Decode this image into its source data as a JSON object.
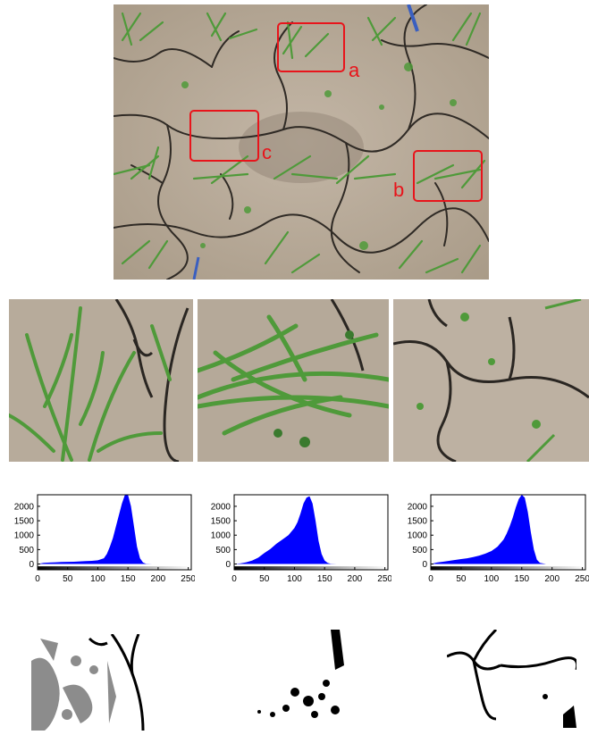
{
  "figure": {
    "regions": [
      {
        "label": "a"
      },
      {
        "label": "b"
      },
      {
        "label": "c"
      }
    ],
    "annotation_color": "#e8141b",
    "soil_color": "#b8aa99",
    "plant_color": "#4f9a3a",
    "crack_color": "#2a2622"
  },
  "chart_data": [
    {
      "type": "bar",
      "title": "",
      "xlabel": "",
      "ylabel": "",
      "xlim": [
        0,
        255
      ],
      "ylim": [
        -200,
        2400
      ],
      "xticks": [
        "0",
        "50",
        "100",
        "150",
        "200",
        "250"
      ],
      "yticks": [
        "0",
        "500",
        "1000",
        "1500",
        "2000"
      ],
      "bar_color": "#0000ff",
      "x": [
        0,
        10,
        20,
        30,
        40,
        50,
        60,
        70,
        80,
        90,
        100,
        110,
        115,
        120,
        125,
        130,
        135,
        140,
        145,
        150,
        155,
        160,
        165,
        170,
        175,
        180,
        190,
        200,
        255
      ],
      "values": [
        0,
        40,
        50,
        60,
        70,
        75,
        80,
        90,
        100,
        110,
        130,
        200,
        350,
        600,
        900,
        1300,
        1700,
        2100,
        2400,
        2400,
        2000,
        1300,
        600,
        200,
        50,
        10,
        0,
        0,
        0
      ]
    },
    {
      "type": "bar",
      "title": "",
      "xlabel": "",
      "ylabel": "",
      "xlim": [
        0,
        255
      ],
      "ylim": [
        -200,
        2400
      ],
      "xticks": [
        "0",
        "50",
        "100",
        "150",
        "200",
        "250"
      ],
      "yticks": [
        "0",
        "500",
        "1000",
        "1500",
        "2000"
      ],
      "bar_color": "#0000ff",
      "x": [
        0,
        10,
        20,
        30,
        40,
        50,
        60,
        70,
        80,
        90,
        100,
        105,
        110,
        115,
        120,
        125,
        130,
        135,
        140,
        145,
        150,
        155,
        160,
        170,
        180,
        190,
        200,
        255
      ],
      "values": [
        0,
        20,
        60,
        120,
        220,
        380,
        520,
        700,
        850,
        1000,
        1250,
        1450,
        1750,
        2100,
        2300,
        2350,
        2100,
        1500,
        800,
        350,
        120,
        40,
        10,
        0,
        0,
        0,
        0,
        0
      ]
    },
    {
      "type": "bar",
      "title": "",
      "xlabel": "",
      "ylabel": "",
      "xlim": [
        0,
        255
      ],
      "ylim": [
        -200,
        2400
      ],
      "xticks": [
        "0",
        "50",
        "100",
        "150",
        "200",
        "250"
      ],
      "yticks": [
        "0",
        "500",
        "1000",
        "1500",
        "2000"
      ],
      "bar_color": "#0000ff",
      "x": [
        0,
        10,
        20,
        30,
        40,
        50,
        60,
        70,
        80,
        90,
        100,
        110,
        120,
        125,
        130,
        135,
        140,
        145,
        150,
        155,
        160,
        165,
        170,
        175,
        180,
        190,
        200,
        255
      ],
      "values": [
        0,
        50,
        80,
        110,
        140,
        170,
        200,
        240,
        290,
        360,
        450,
        600,
        850,
        1050,
        1300,
        1600,
        1950,
        2250,
        2400,
        2300,
        1800,
        1100,
        500,
        150,
        40,
        0,
        0,
        0
      ]
    }
  ]
}
